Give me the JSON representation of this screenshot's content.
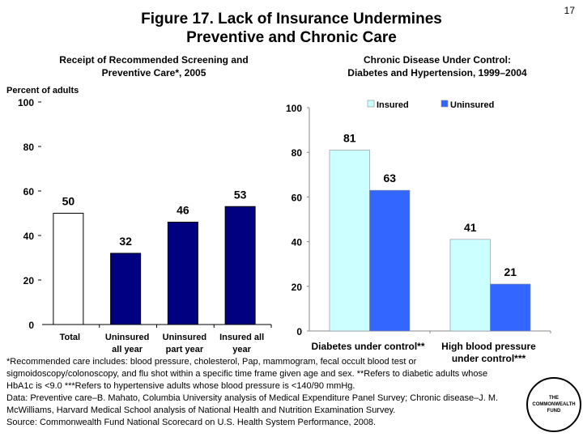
{
  "page_number": "17",
  "title_line1": "Figure 17. Lack of Insurance Undermines",
  "title_line2": "Preventive and Chronic Care",
  "chart_data": [
    {
      "type": "bar",
      "title_line1": "Receipt of Recommended Screening and",
      "title_line2": "Preventive Care*, 2005",
      "ylabel": "Percent of adults",
      "ylim": [
        0,
        100
      ],
      "yticks": [
        0,
        20,
        40,
        60,
        80,
        100
      ],
      "categories": [
        [
          "Total"
        ],
        [
          "Uninsured",
          "all year"
        ],
        [
          "Uninsured",
          "part year"
        ],
        [
          "Insured all",
          "year"
        ]
      ],
      "values": [
        50,
        32,
        46,
        53
      ],
      "colors": [
        "#ffffff",
        "#000080",
        "#000080",
        "#000080"
      ],
      "grid": false
    },
    {
      "type": "bar",
      "title_line1": "Chronic Disease Under Control:",
      "title_line2": "Diabetes and Hypertension, 1999–2004",
      "ylim": [
        0,
        100
      ],
      "yticks": [
        0,
        20,
        40,
        60,
        80,
        100
      ],
      "categories": [
        [
          "Diabetes under control**"
        ],
        [
          "High blood pressure",
          "under control***"
        ]
      ],
      "series": [
        {
          "name": "Insured",
          "values": [
            81,
            41
          ],
          "color": "#ccffff"
        },
        {
          "name": "Uninsured",
          "values": [
            63,
            21
          ],
          "color": "#3366ff"
        }
      ],
      "legend": "top",
      "grid": false
    }
  ],
  "notes": [
    "*Recommended care includes: blood pressure, cholesterol, Pap, mammogram, fecal occult blood test or sigmoidoscopy/colonoscopy, and flu shot within a specific time frame given age and sex. **Refers to diabetic adults whose HbA1c is <9.0 ***Refers to hypertensive adults whose blood pressure is <140/90 mmHg.",
    "Data: Preventive care–B. Mahato, Columbia University analysis of Medical Expenditure Panel Survey; Chronic disease–J. M. McWilliams, Harvard Medical School analysis of National Health and Nutrition Examination Survey.",
    "Source: Commonwealth Fund National Scorecard on U.S. Health System Performance, 2008."
  ],
  "logo": {
    "line1": "THE",
    "line2": "COMMONWEALTH",
    "line3": "FUND"
  }
}
